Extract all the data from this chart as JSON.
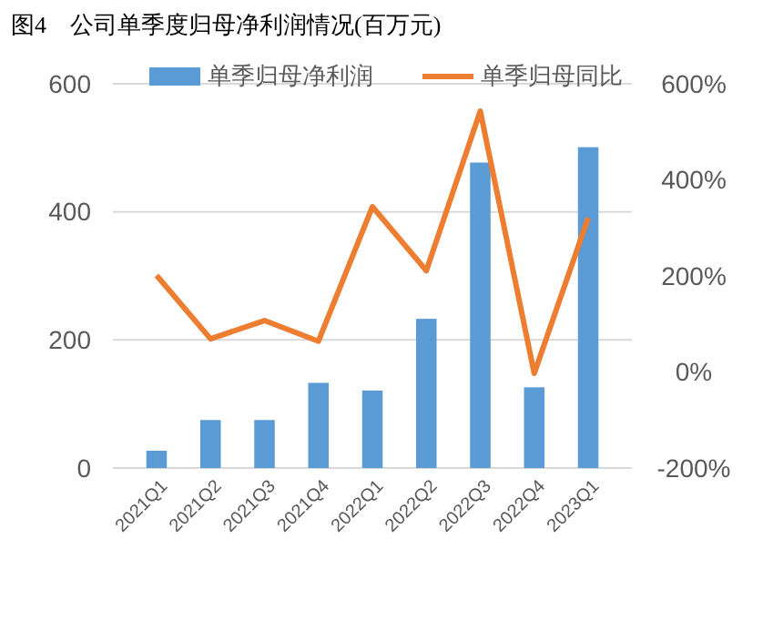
{
  "chart_data": {
    "type": "bar",
    "title": "图4　公司单季度归母净利润情况(百万元)",
    "categories": [
      "2021Q1",
      "2021Q2",
      "2021Q3",
      "2021Q4",
      "2022Q1",
      "2022Q2",
      "2022Q3",
      "2022Q4",
      "2023Q1"
    ],
    "series": [
      {
        "name": "单季归母净利润",
        "color": "#5b9bd5",
        "values": [
          27,
          75,
          75,
          133,
          121,
          233,
          477,
          126,
          501
        ]
      },
      {
        "name": "单季归母同比",
        "color": "#ed7d31",
        "type": "line",
        "axis": "y2",
        "values": [
          201,
          69,
          107,
          64,
          344,
          211,
          543,
          -3,
          321
        ]
      }
    ],
    "ylim": [
      0,
      600
    ],
    "yticks": [
      0,
      200,
      400,
      600
    ],
    "y2lim": [
      -200,
      600
    ],
    "y2ticks": [
      {
        "value": -200,
        "label": "-200%"
      },
      {
        "value": 0,
        "label": "0%"
      },
      {
        "value": 200,
        "label": "200%"
      },
      {
        "value": 400,
        "label": "400%"
      },
      {
        "value": 600,
        "label": "600%"
      }
    ],
    "grid": "y",
    "legend": "top",
    "marker": "none",
    "line_style": "solid"
  }
}
